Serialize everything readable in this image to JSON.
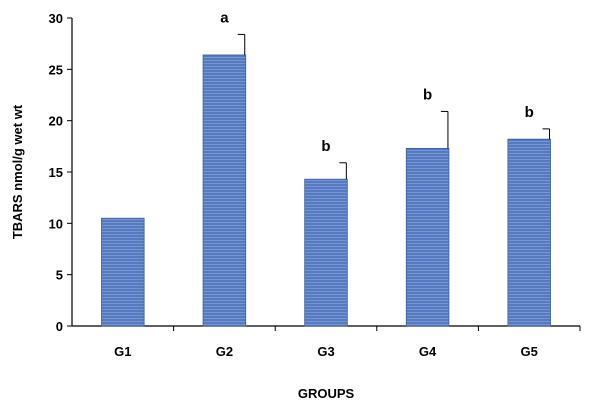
{
  "chart_data": {
    "type": "bar",
    "title": "",
    "xlabel": "GROUPS",
    "ylabel": "TBARS nmol/g wet wt",
    "categories": [
      "G1",
      "G2",
      "G3",
      "G4",
      "G5"
    ],
    "values": [
      10.5,
      26.4,
      14.3,
      17.3,
      18.2
    ],
    "error_upper": [
      0.0,
      2.0,
      1.6,
      3.6,
      1.0
    ],
    "significance_labels": [
      "",
      "a",
      "b",
      "b",
      "b"
    ],
    "ylim": [
      0,
      30
    ],
    "yticks": [
      "0",
      "5",
      "10",
      "15",
      "20",
      "25",
      "30"
    ],
    "grid": false,
    "legend": "none",
    "bar_color": "#5b7fc4",
    "bar_edge_color": "#3f5f9e"
  }
}
